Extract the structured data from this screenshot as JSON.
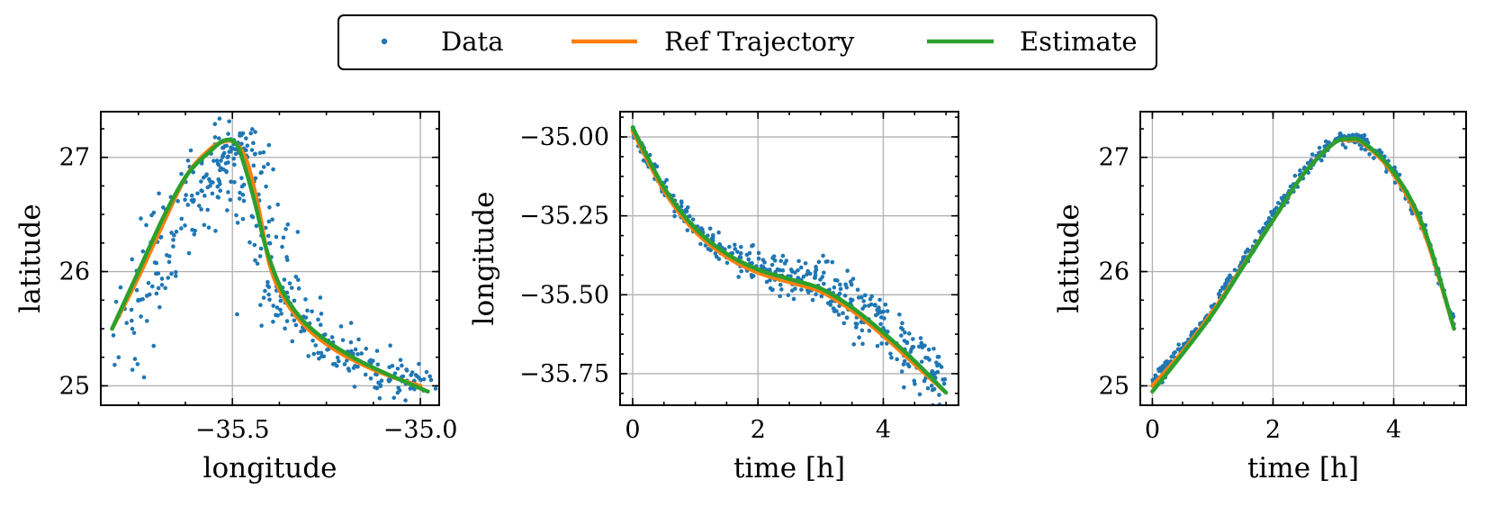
{
  "legend": {
    "entries": [
      {
        "label": "Data",
        "marker": "dot",
        "color": "#1f77b4"
      },
      {
        "label": "Ref Trajectory",
        "marker": "line",
        "color": "#ff7f0e"
      },
      {
        "label": "Estimate",
        "marker": "line",
        "color": "#2ca02c"
      }
    ]
  },
  "colors": {
    "data": "#1f77b4",
    "ref": "#ff7f0e",
    "estimate": "#2ca02c",
    "grid": "#b0b0b0"
  },
  "chart_data": [
    {
      "type": "scatter",
      "title": "",
      "xlabel": "longitude",
      "ylabel": "latitude",
      "xlim": [
        -35.85,
        -34.95
      ],
      "ylim": [
        24.83,
        27.4
      ],
      "xticks": [
        -35.5,
        -35.0
      ],
      "xtick_labels": [
        "−35.5",
        "−35.0"
      ],
      "yticks": [
        25,
        26,
        27
      ],
      "ytick_labels": [
        "25",
        "26",
        "27"
      ],
      "grid": true,
      "series": [
        {
          "name": "Ref Trajectory",
          "kind": "line",
          "x": [
            -35.82,
            -35.75,
            -35.68,
            -35.62,
            -35.56,
            -35.52,
            -35.49,
            -35.46,
            -35.43,
            -35.4,
            -35.36,
            -35.3,
            -35.22,
            -35.13,
            -35.05,
            -35.0
          ],
          "y": [
            25.5,
            25.95,
            26.45,
            26.85,
            27.07,
            27.14,
            27.12,
            26.95,
            26.55,
            26.05,
            25.75,
            25.5,
            25.3,
            25.15,
            25.05,
            25.0
          ]
        },
        {
          "name": "Estimate",
          "kind": "line",
          "x": [
            -35.82,
            -35.75,
            -35.68,
            -35.62,
            -35.56,
            -35.52,
            -35.49,
            -35.47,
            -35.44,
            -35.41,
            -35.37,
            -35.32,
            -35.26,
            -35.18,
            -35.1,
            -35.03,
            -34.98
          ],
          "y": [
            25.5,
            26.0,
            26.5,
            26.85,
            27.05,
            27.15,
            27.12,
            26.95,
            26.6,
            26.2,
            25.85,
            25.6,
            25.42,
            25.25,
            25.12,
            25.02,
            24.95
          ]
        },
        {
          "name": "Data",
          "kind": "scatter",
          "generated": "noisy samples around reference trajectory, 400 points"
        }
      ]
    },
    {
      "type": "scatter",
      "title": "",
      "xlabel": "time [h]",
      "ylabel": "longitude",
      "xlim": [
        -0.2,
        5.2
      ],
      "ylim": [
        -35.85,
        -34.92
      ],
      "xticks": [
        0,
        2,
        4
      ],
      "xtick_labels": [
        "0",
        "2",
        "4"
      ],
      "yticks": [
        -35.0,
        -35.25,
        -35.5,
        -35.75
      ],
      "ytick_labels": [
        "−35.00",
        "−35.25",
        "−35.50",
        "−35.75"
      ],
      "grid": true,
      "series": [
        {
          "name": "Ref Trajectory",
          "kind": "line",
          "x": [
            0,
            0.5,
            1.0,
            1.5,
            2.0,
            2.5,
            3.0,
            3.5,
            4.0,
            4.5,
            5.0
          ],
          "y": [
            -34.98,
            -35.17,
            -35.3,
            -35.38,
            -35.43,
            -35.46,
            -35.49,
            -35.55,
            -35.63,
            -35.72,
            -35.81
          ]
        },
        {
          "name": "Estimate",
          "kind": "line",
          "x": [
            0,
            0.5,
            1.0,
            1.5,
            2.0,
            2.5,
            3.0,
            3.5,
            4.0,
            4.5,
            5.0
          ],
          "y": [
            -34.97,
            -35.16,
            -35.29,
            -35.37,
            -35.42,
            -35.45,
            -35.48,
            -35.54,
            -35.62,
            -35.71,
            -35.81
          ]
        },
        {
          "name": "Data",
          "kind": "scatter",
          "generated": "noisy samples around reference, spread increasing with time, 400 points"
        }
      ]
    },
    {
      "type": "scatter",
      "title": "",
      "xlabel": "time [h]",
      "ylabel": "latitude",
      "xlim": [
        -0.2,
        5.2
      ],
      "ylim": [
        24.83,
        27.4
      ],
      "xticks": [
        0,
        2,
        4
      ],
      "xtick_labels": [
        "0",
        "2",
        "4"
      ],
      "yticks": [
        25,
        26,
        27
      ],
      "ytick_labels": [
        "25",
        "26",
        "27"
      ],
      "grid": true,
      "series": [
        {
          "name": "Ref Trajectory",
          "kind": "line",
          "x": [
            0,
            0.5,
            1.0,
            1.5,
            2.0,
            2.5,
            3.0,
            3.25,
            3.5,
            4.0,
            4.5,
            5.0
          ],
          "y": [
            25.0,
            25.3,
            25.65,
            26.05,
            26.45,
            26.85,
            27.12,
            27.15,
            27.12,
            26.85,
            26.35,
            25.5
          ]
        },
        {
          "name": "Estimate",
          "kind": "line",
          "x": [
            0,
            0.5,
            1.0,
            1.5,
            2.0,
            2.5,
            3.0,
            3.25,
            3.5,
            4.0,
            4.5,
            5.0
          ],
          "y": [
            24.95,
            25.28,
            25.63,
            26.04,
            26.45,
            26.85,
            27.12,
            27.16,
            27.13,
            26.87,
            26.38,
            25.5
          ]
        },
        {
          "name": "Data",
          "kind": "scatter",
          "generated": "tight noisy samples around reference, 400 points"
        }
      ]
    }
  ]
}
